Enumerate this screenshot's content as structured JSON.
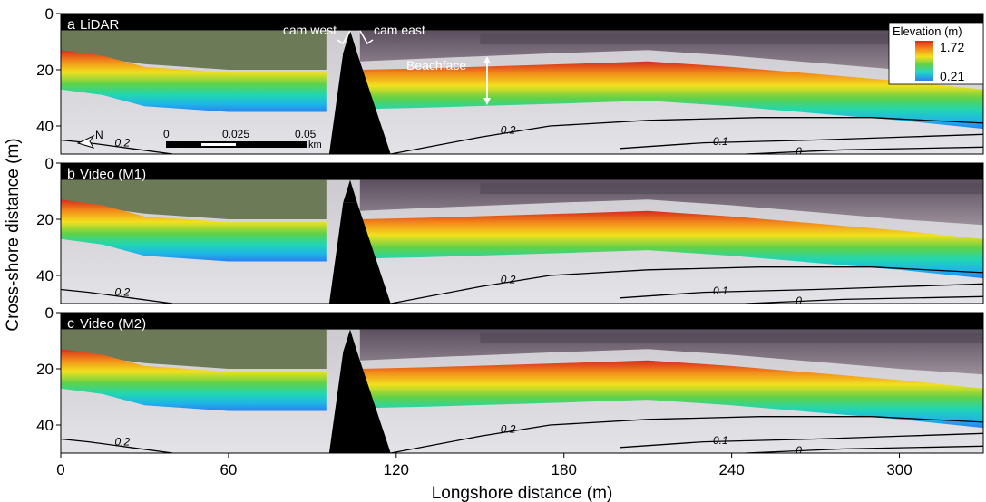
{
  "chart_data": {
    "type": "heatmap",
    "xlabel": "Longshore distance (m)",
    "ylabel": "Cross-shore distance (m)",
    "x_ticks": [
      0,
      60,
      120,
      180,
      240,
      300
    ],
    "xlim": [
      0,
      330
    ],
    "y_ticks": [
      0,
      20,
      40
    ],
    "ylim": [
      50,
      0
    ],
    "colorbar": {
      "title": "Elevation (m)",
      "max": "1.72",
      "min": "0.21"
    },
    "panels": [
      {
        "letter": "a",
        "name": "LiDAR",
        "contours": [
          "0.2",
          "0.2",
          "0.1",
          "0"
        ]
      },
      {
        "letter": "b",
        "name": "Video (M1)",
        "contours": [
          "0.2",
          "0.2",
          "0.1",
          "0"
        ]
      },
      {
        "letter": "c",
        "name": "Video (M2)",
        "contours": [
          "0.2",
          "0.2",
          "0.1",
          "0"
        ]
      }
    ],
    "annotations": {
      "cam_west": "cam west",
      "cam_east": "cam east",
      "beachface": "Beachface"
    },
    "scalebar": {
      "labels": [
        "0",
        "0.025",
        "0.05"
      ],
      "unit": "km"
    },
    "north_arrow": "N"
  }
}
